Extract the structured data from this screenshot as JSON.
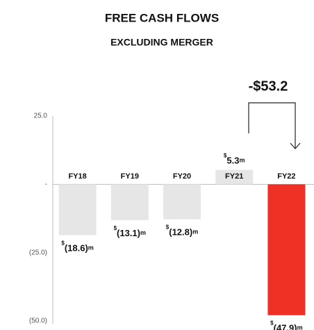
{
  "chart_data": {
    "type": "bar",
    "title": "FREE CASH FLOWS",
    "subtitle": "EXCLUDING MERGER",
    "annotation": "-$53.2",
    "categories": [
      "FY18",
      "FY19",
      "FY20",
      "FY21",
      "FY22"
    ],
    "values": [
      -18.6,
      -13.1,
      -12.8,
      5.3,
      -47.9
    ],
    "value_labels": [
      "$(18.6)m",
      "$(13.1)m",
      "$(12.8)m",
      "$5.3m",
      "$(47.9)m"
    ],
    "colors": [
      "#e6e6e6",
      "#e6e6e6",
      "#e6e6e6",
      "#e6e6e6",
      "#ee3124"
    ],
    "ylim": [
      -50,
      25
    ],
    "yticks": [
      {
        "value": 25,
        "label": "25.0"
      },
      {
        "value": 0,
        "label": "-"
      },
      {
        "value": -25,
        "label": "(25.0)"
      },
      {
        "value": -50,
        "label": "(50.0)"
      }
    ],
    "grid": false
  }
}
